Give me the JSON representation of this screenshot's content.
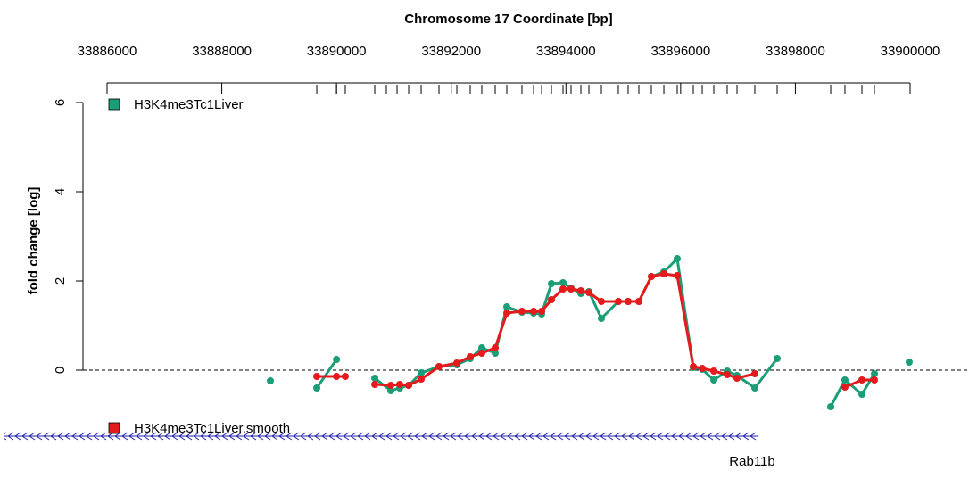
{
  "chart_data": {
    "type": "line",
    "title": "Chromosome 17 Coordinate [bp]",
    "y_label": "fold change [log]",
    "xlim": [
      33886000,
      33900000
    ],
    "xticks": [
      33886000,
      33888000,
      33890000,
      33892000,
      33894000,
      33896000,
      33898000,
      33900000
    ],
    "ylim": [
      -1.1,
      6.4
    ],
    "yticks": [
      0,
      2,
      4,
      6
    ],
    "series": [
      {
        "name": "H3K4me3Tc1Liver",
        "color": "#1b9e77",
        "x": [
          33888847,
          null,
          33889656,
          33890000,
          null,
          33890667,
          33890947,
          33891102,
          33891258,
          33891476,
          33891787,
          33892098,
          33892331,
          33892533,
          33892767,
          33892969,
          33893233,
          33893436,
          33893576,
          33893747,
          33893949,
          33894089,
          33894260,
          33894400,
          33894618,
          33894913,
          33895084,
          33895271,
          33895489,
          33895707,
          33895940,
          33896220,
          33896376,
          33896578,
          33896811,
          33896982,
          33897293,
          33897682,
          null,
          33898616,
          33898864,
          33899160,
          33899378,
          null,
          33899984
        ],
        "values": [
          -0.24,
          null,
          -0.4,
          0.24,
          null,
          -0.18,
          -0.46,
          -0.4,
          -0.34,
          -0.06,
          0.08,
          0.12,
          0.26,
          0.5,
          0.38,
          1.42,
          1.3,
          1.28,
          1.26,
          1.94,
          1.96,
          1.84,
          1.72,
          1.76,
          1.16,
          1.54,
          1.54,
          1.54,
          2.1,
          2.2,
          2.5,
          0.06,
          0.02,
          -0.22,
          -0.02,
          -0.12,
          -0.4,
          0.26,
          null,
          -0.82,
          -0.22,
          -0.54,
          -0.08,
          null,
          0.18
        ]
      },
      {
        "name": "H3K4me3Tc1Liver.smooth",
        "color": "#e41a1c",
        "x": [
          33889656,
          33890000,
          33890153,
          null,
          33890667,
          33890947,
          33891102,
          33891258,
          33891476,
          33891787,
          33892098,
          33892331,
          33892533,
          33892767,
          33892969,
          33893233,
          33893436,
          33893576,
          33893747,
          33893949,
          33894089,
          33894260,
          33894400,
          33894618,
          33894913,
          33895084,
          33895271,
          33895489,
          33895707,
          33895940,
          33896220,
          33896376,
          33896578,
          33896811,
          33896982,
          33897293,
          null,
          33898864,
          33899160,
          33899378
        ],
        "values": [
          -0.14,
          -0.14,
          -0.14,
          null,
          -0.32,
          -0.34,
          -0.32,
          -0.34,
          -0.2,
          0.08,
          0.16,
          0.3,
          0.38,
          0.5,
          1.28,
          1.32,
          1.32,
          1.32,
          1.58,
          1.82,
          1.82,
          1.78,
          1.74,
          1.54,
          1.54,
          1.54,
          1.54,
          2.1,
          2.16,
          2.12,
          0.08,
          0.04,
          -0.02,
          -0.1,
          -0.18,
          -0.08,
          null,
          -0.38,
          -0.22,
          -0.22
        ]
      }
    ],
    "rug": [
      33889656,
      33890000,
      33890153,
      33890667,
      33890869,
      33891056,
      33891258,
      33891476,
      33891787,
      33892098,
      33892331,
      33892533,
      33892767,
      33892969,
      33893233,
      33893436,
      33893576,
      33893747,
      33893949,
      33894089,
      33894260,
      33894400,
      33894618,
      33894913,
      33895084,
      33895271,
      33895489,
      33895707,
      33895940,
      33896220,
      33896376,
      33896578,
      33896811,
      33896982,
      33897293,
      33897682,
      33898616,
      33898864,
      33899160,
      33899378
    ],
    "gene": {
      "name": "Rab11b",
      "start": 33884211,
      "end": 33897356,
      "color": "#2222aa"
    }
  }
}
